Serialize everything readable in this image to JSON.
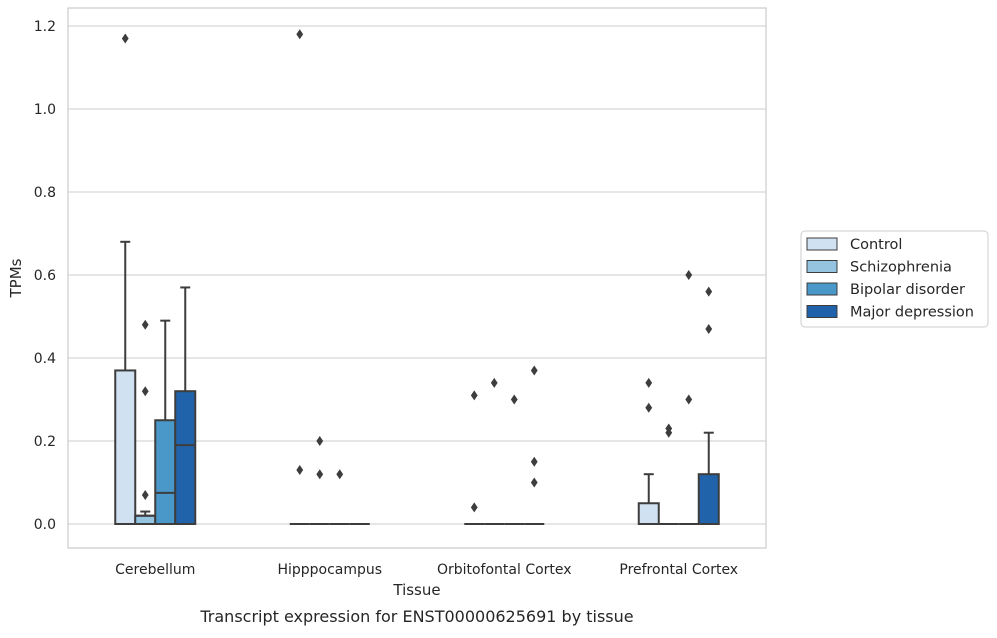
{
  "chart_data": {
    "type": "box",
    "caption": "Transcript expression for ENST00000625691 by tissue",
    "xlabel": "Tissue",
    "ylabel": "TPMs",
    "ylim": [
      -0.057,
      1.24
    ],
    "yticks": [
      0.0,
      0.2,
      0.4,
      0.6,
      0.8,
      1.0,
      1.2
    ],
    "ytick_labels": [
      "0.0",
      "0.2",
      "0.4",
      "0.6",
      "0.8",
      "1.0",
      "1.2"
    ],
    "grid": "horizontal",
    "legend_position": "right",
    "categories": [
      "Cerebellum",
      "Hipppocampus",
      "Orbitofontal Cortex",
      "Prefrontal Cortex"
    ],
    "series": [
      {
        "name": "Control",
        "color": "#d0e1f2",
        "boxes": [
          {
            "q1": 0.0,
            "median": 0.0,
            "q3": 0.37,
            "wlo": 0.0,
            "whi": 0.68,
            "outliers": [
              1.17
            ]
          },
          {
            "q1": 0.0,
            "median": 0.0,
            "q3": 0.0,
            "wlo": 0.0,
            "whi": 0.0,
            "outliers": [
              0.13,
              1.18
            ]
          },
          {
            "q1": 0.0,
            "median": 0.0,
            "q3": 0.0,
            "wlo": 0.0,
            "whi": 0.0,
            "outliers": [
              0.04,
              0.31
            ]
          },
          {
            "q1": 0.0,
            "median": 0.0,
            "q3": 0.05,
            "wlo": 0.0,
            "whi": 0.12,
            "outliers": [
              0.28,
              0.34
            ]
          }
        ]
      },
      {
        "name": "Schizophrenia",
        "color": "#94c4df",
        "boxes": [
          {
            "q1": 0.0,
            "median": 0.02,
            "q3": 0.02,
            "wlo": 0.0,
            "whi": 0.03,
            "outliers": [
              0.07,
              0.32,
              0.48
            ]
          },
          {
            "q1": 0.0,
            "median": 0.0,
            "q3": 0.0,
            "wlo": 0.0,
            "whi": 0.0,
            "outliers": [
              0.12,
              0.2
            ]
          },
          {
            "q1": 0.0,
            "median": 0.0,
            "q3": 0.0,
            "wlo": 0.0,
            "whi": 0.0,
            "outliers": [
              0.34
            ]
          },
          {
            "q1": 0.0,
            "median": 0.0,
            "q3": 0.0,
            "wlo": 0.0,
            "whi": 0.0,
            "outliers": [
              0.22,
              0.23
            ]
          }
        ]
      },
      {
        "name": "Bipolar disorder",
        "color": "#4a98c9",
        "boxes": [
          {
            "q1": 0.0,
            "median": 0.075,
            "q3": 0.25,
            "wlo": 0.0,
            "whi": 0.49,
            "outliers": []
          },
          {
            "q1": 0.0,
            "median": 0.0,
            "q3": 0.0,
            "wlo": 0.0,
            "whi": 0.0,
            "outliers": [
              0.12
            ]
          },
          {
            "q1": 0.0,
            "median": 0.0,
            "q3": 0.0,
            "wlo": 0.0,
            "whi": 0.0,
            "outliers": [
              0.3
            ]
          },
          {
            "q1": 0.0,
            "median": 0.0,
            "q3": 0.0,
            "wlo": 0.0,
            "whi": 0.0,
            "outliers": [
              0.3,
              0.6
            ]
          }
        ]
      },
      {
        "name": "Major depression",
        "color": "#2163aa",
        "boxes": [
          {
            "q1": 0.0,
            "median": 0.19,
            "q3": 0.32,
            "wlo": 0.0,
            "whi": 0.57,
            "outliers": []
          },
          {
            "q1": 0.0,
            "median": 0.0,
            "q3": 0.0,
            "wlo": 0.0,
            "whi": 0.0,
            "outliers": []
          },
          {
            "q1": 0.0,
            "median": 0.0,
            "q3": 0.0,
            "wlo": 0.0,
            "whi": 0.0,
            "outliers": [
              0.1,
              0.15,
              0.37
            ]
          },
          {
            "q1": 0.0,
            "median": 0.0,
            "q3": 0.12,
            "wlo": 0.0,
            "whi": 0.22,
            "outliers": [
              0.47,
              0.56
            ]
          }
        ]
      }
    ]
  }
}
